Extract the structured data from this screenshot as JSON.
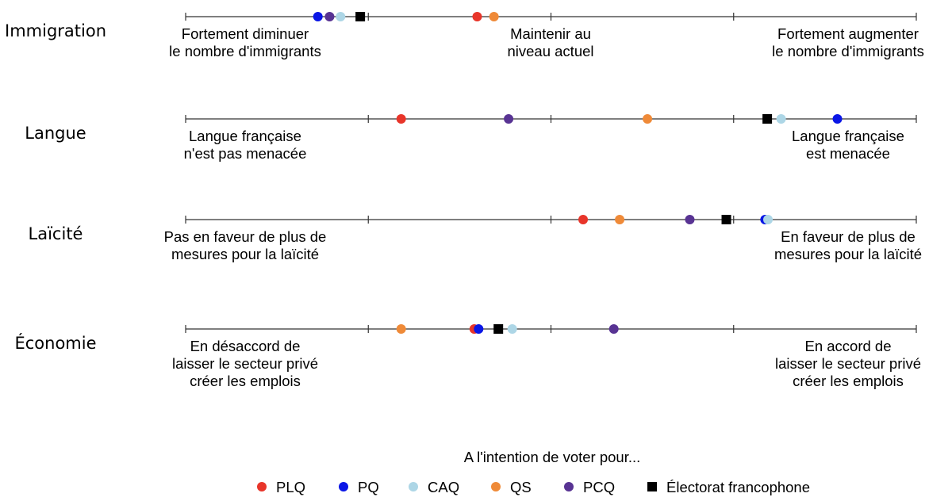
{
  "chart_data": {
    "type": "scatter",
    "x_scale": [
      0,
      1
    ],
    "series_styles": [
      {
        "key": "PLQ",
        "name": "PLQ",
        "color": "#e8352a",
        "marker": "circle"
      },
      {
        "key": "PQ",
        "name": "PQ",
        "color": "#0a16e6",
        "marker": "circle"
      },
      {
        "key": "CAQ",
        "name": "CAQ",
        "color": "#add6e6",
        "marker": "circle"
      },
      {
        "key": "QS",
        "name": "QS",
        "color": "#ef8a38",
        "marker": "circle"
      },
      {
        "key": "PCQ",
        "name": "PCQ",
        "color": "#583393",
        "marker": "circle"
      },
      {
        "key": "ELEC",
        "name": "Électorat francophone",
        "color": "#000000",
        "marker": "square"
      }
    ],
    "rows": [
      {
        "name": "Immigration",
        "left_label": [
          "Fortement diminuer",
          "le nombre d'immigrants"
        ],
        "middle_label": [
          "Maintenir au",
          "niveau actuel"
        ],
        "right_label": [
          "Fortement augmenter",
          "le nombre d'immigrants"
        ],
        "points": {
          "PQ": 0.181,
          "PCQ": 0.197,
          "CAQ": 0.212,
          "ELEC": 0.239,
          "PLQ": 0.399,
          "QS": 0.422
        }
      },
      {
        "name": "Langue",
        "left_label": [
          "Langue française",
          "n'est pas menacée"
        ],
        "middle_label": [],
        "right_label": [
          "Langue française",
          "est menacée"
        ],
        "points": {
          "PLQ": 0.295,
          "PCQ": 0.442,
          "QS": 0.632,
          "ELEC": 0.796,
          "CAQ": 0.815,
          "PQ": 0.892
        }
      },
      {
        "name": "Laïcité",
        "left_label": [
          "Pas en faveur de plus de",
          "mesures pour la laïcité"
        ],
        "middle_label": [],
        "right_label": [
          "En faveur de plus de",
          "mesures pour la laïcité"
        ],
        "points": {
          "PLQ": 0.544,
          "QS": 0.594,
          "PCQ": 0.69,
          "ELEC": 0.74,
          "PQ": 0.793,
          "CAQ": 0.797
        }
      },
      {
        "name": "Économie",
        "left_label": [
          "En désaccord de",
          "laisser le secteur privé",
          "créer les emplois"
        ],
        "middle_label": [],
        "right_label": [
          "En accord de",
          "laisser le secteur privé",
          "créer les emplois"
        ],
        "points": {
          "QS": 0.295,
          "PLQ": 0.395,
          "PQ": 0.401,
          "ELEC": 0.428,
          "CAQ": 0.447,
          "PCQ": 0.586
        }
      }
    ],
    "legend_title": "A l'intention de voter pour...",
    "legend_position": "bottom-center",
    "grid": false
  }
}
